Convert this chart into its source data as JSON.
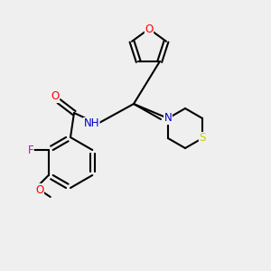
{
  "bg_color": "#efefef",
  "bond_color": "#000000",
  "bond_width": 1.5,
  "atom_colors": {
    "O": "#ff0000",
    "N": "#0000cd",
    "S": "#cccc00",
    "F": "#cc00cc",
    "C": "#000000"
  },
  "font_size": 8.5,
  "fig_size": [
    3.0,
    3.0
  ],
  "dpi": 100
}
